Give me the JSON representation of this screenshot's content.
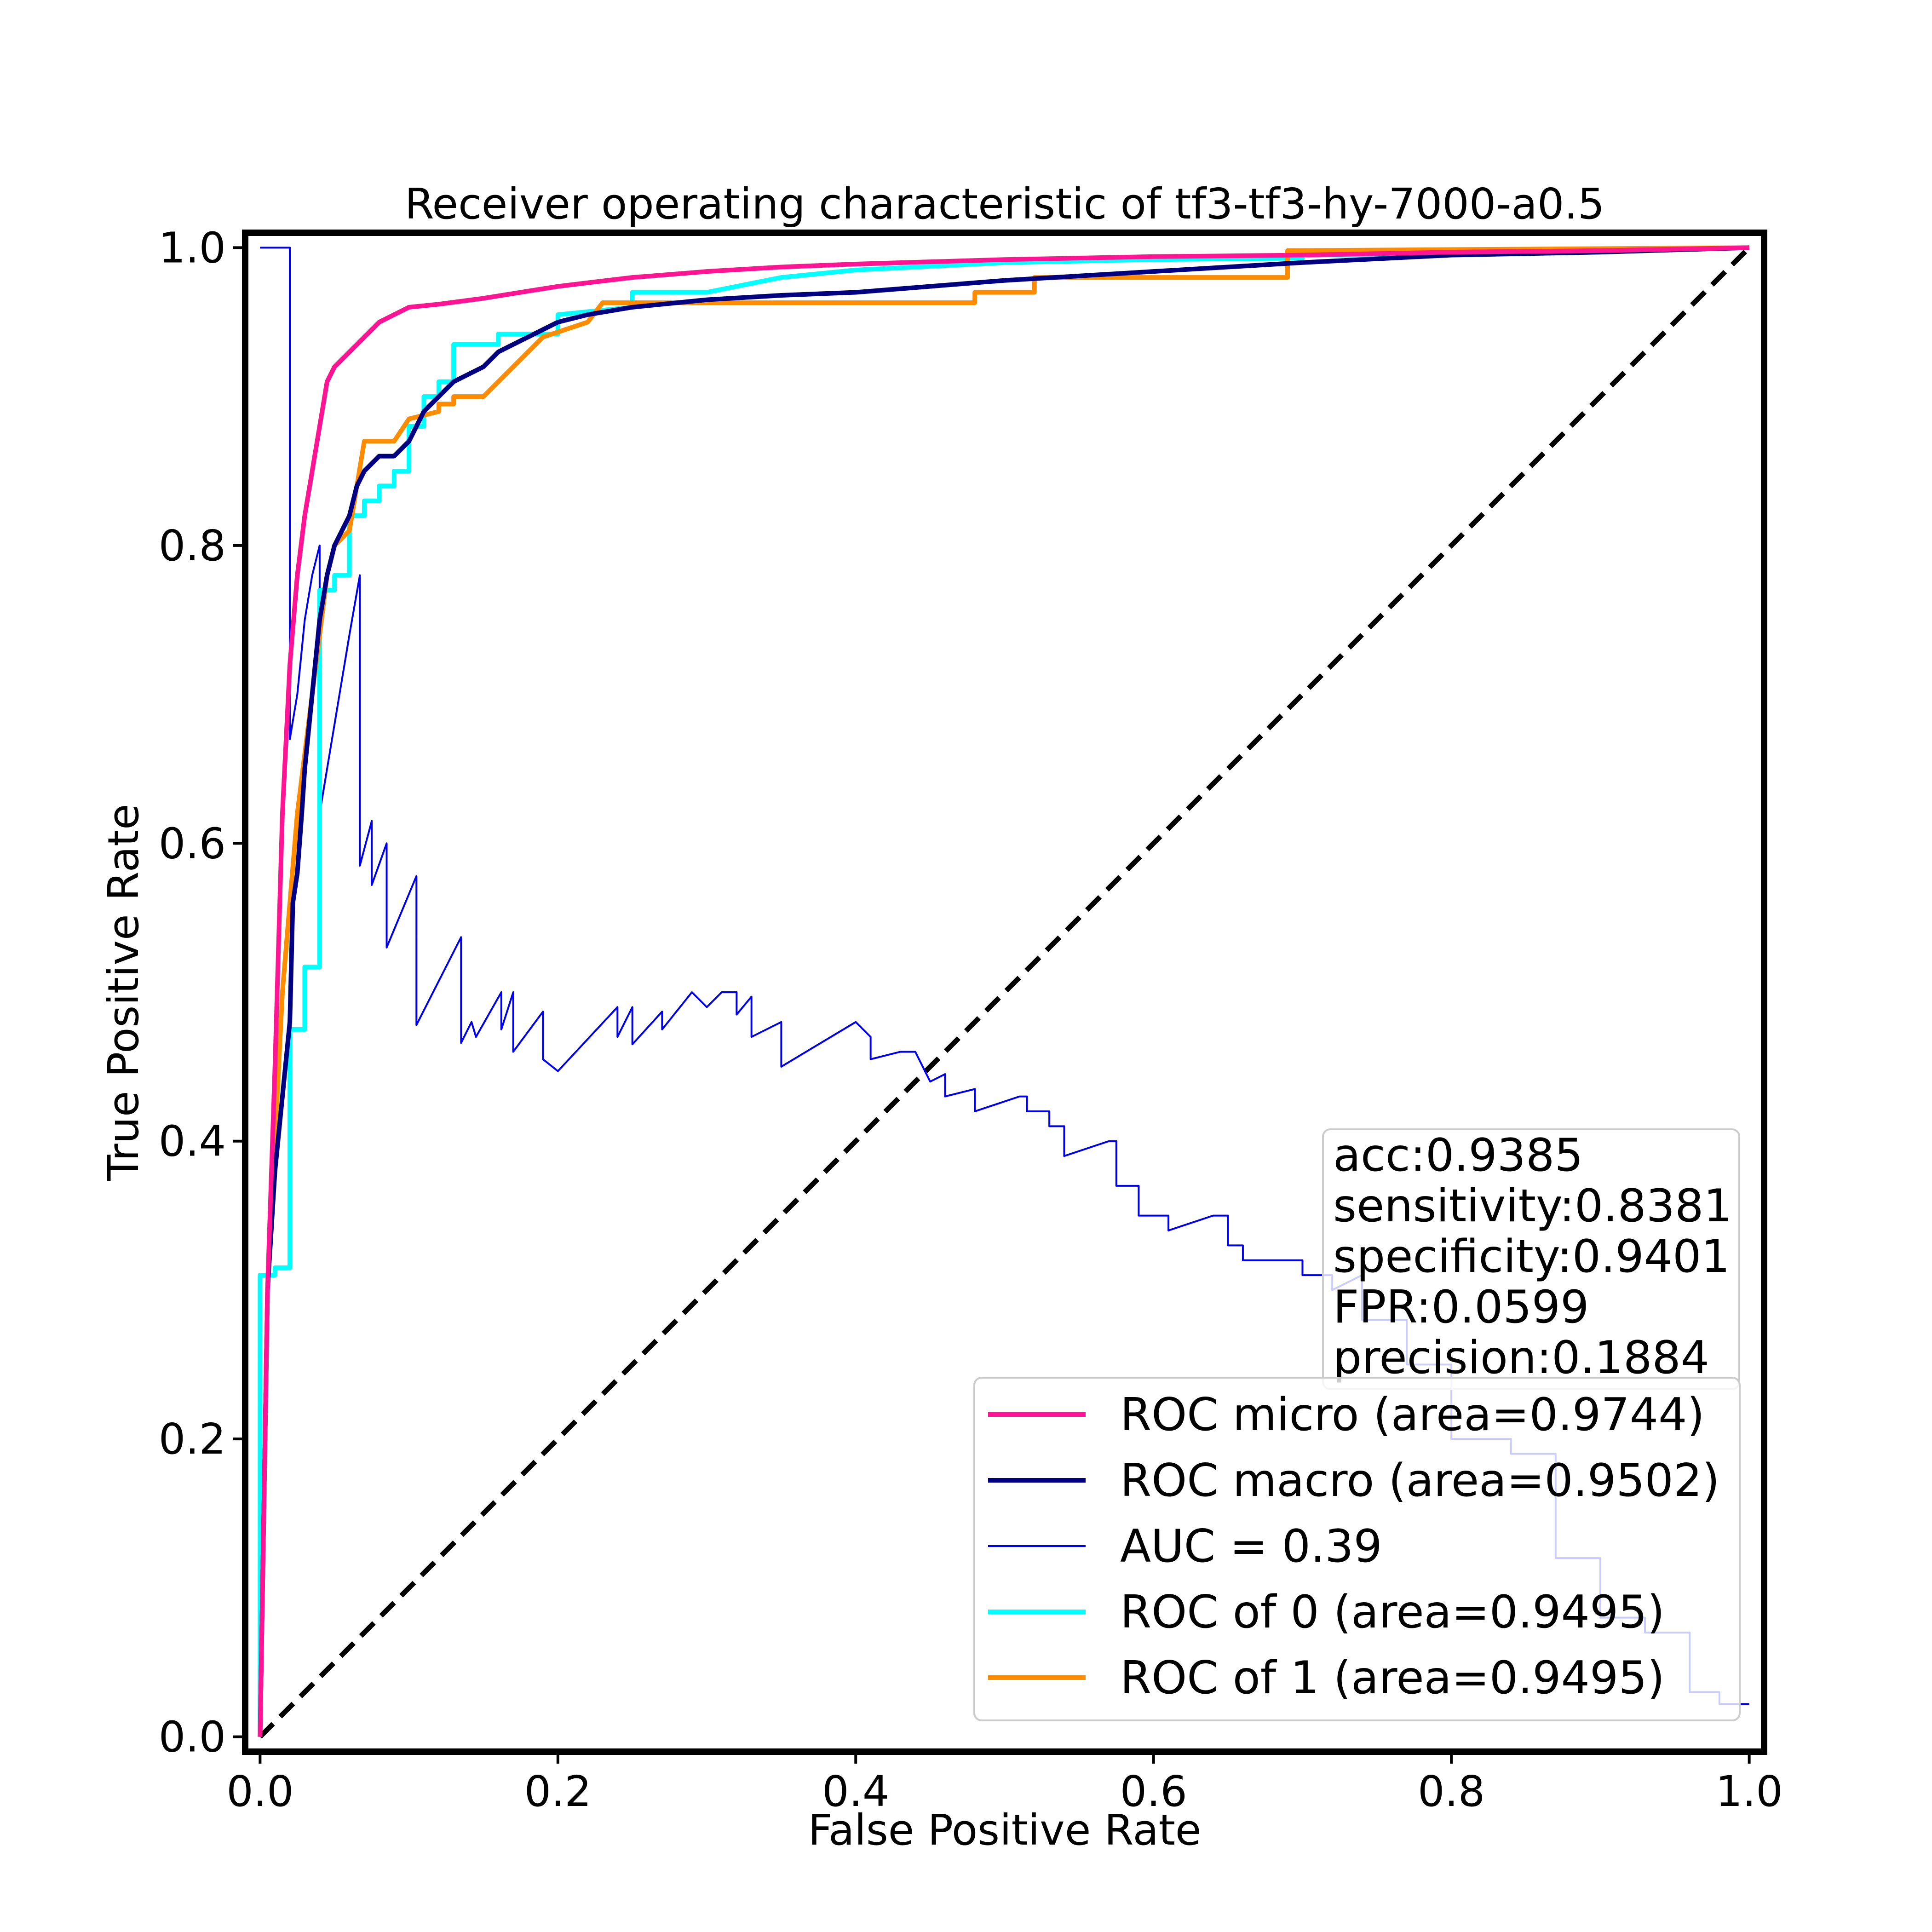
{
  "chart_data": {
    "type": "line",
    "title": "Receiver operating characteristic of tf3-tf3-hy-7000-a0.5",
    "xlabel": "False Positive Rate",
    "ylabel": "True Positive Rate",
    "xlim": [
      -0.01,
      1.01
    ],
    "ylim": [
      -0.01,
      1.01
    ],
    "x_ticks": [
      "0.0",
      "0.2",
      "0.4",
      "0.6",
      "0.8",
      "1.0"
    ],
    "y_ticks": [
      "0.0",
      "0.2",
      "0.4",
      "0.6",
      "0.8",
      "1.0"
    ],
    "grid": false,
    "legend_position": "lower-right",
    "stats": [
      "acc:0.9385",
      "sensitivity:0.8381",
      "specificity:0.9401",
      "FPR:0.0599",
      "precision:0.1884"
    ],
    "series": [
      {
        "name": "ROC micro (area=0.9744)",
        "color": "#ff1493",
        "points": [
          [
            0,
            0
          ],
          [
            0.005,
            0.3
          ],
          [
            0.01,
            0.45
          ],
          [
            0.015,
            0.62
          ],
          [
            0.02,
            0.72
          ],
          [
            0.025,
            0.78
          ],
          [
            0.03,
            0.82
          ],
          [
            0.035,
            0.85
          ],
          [
            0.04,
            0.88
          ],
          [
            0.045,
            0.91
          ],
          [
            0.05,
            0.92
          ],
          [
            0.06,
            0.93
          ],
          [
            0.07,
            0.94
          ],
          [
            0.08,
            0.95
          ],
          [
            0.09,
            0.955
          ],
          [
            0.1,
            0.96
          ],
          [
            0.12,
            0.962
          ],
          [
            0.15,
            0.966
          ],
          [
            0.2,
            0.974
          ],
          [
            0.25,
            0.98
          ],
          [
            0.3,
            0.984
          ],
          [
            0.35,
            0.987
          ],
          [
            0.4,
            0.989
          ],
          [
            0.5,
            0.992
          ],
          [
            0.6,
            0.994
          ],
          [
            0.7,
            0.995
          ],
          [
            0.8,
            0.997
          ],
          [
            0.9,
            0.998
          ],
          [
            1.0,
            1.0
          ]
        ]
      },
      {
        "name": "ROC macro (area=0.9502)",
        "color": "#000080",
        "points": [
          [
            0,
            0
          ],
          [
            0.005,
            0.3
          ],
          [
            0.01,
            0.38
          ],
          [
            0.015,
            0.43
          ],
          [
            0.02,
            0.48
          ],
          [
            0.022,
            0.56
          ],
          [
            0.025,
            0.58
          ],
          [
            0.028,
            0.62
          ],
          [
            0.03,
            0.65
          ],
          [
            0.035,
            0.7
          ],
          [
            0.04,
            0.75
          ],
          [
            0.045,
            0.78
          ],
          [
            0.05,
            0.8
          ],
          [
            0.06,
            0.82
          ],
          [
            0.065,
            0.84
          ],
          [
            0.07,
            0.85
          ],
          [
            0.08,
            0.86
          ],
          [
            0.09,
            0.86
          ],
          [
            0.1,
            0.87
          ],
          [
            0.11,
            0.89
          ],
          [
            0.12,
            0.9
          ],
          [
            0.13,
            0.91
          ],
          [
            0.14,
            0.915
          ],
          [
            0.15,
            0.92
          ],
          [
            0.16,
            0.93
          ],
          [
            0.18,
            0.94
          ],
          [
            0.2,
            0.95
          ],
          [
            0.22,
            0.955
          ],
          [
            0.25,
            0.96
          ],
          [
            0.3,
            0.965
          ],
          [
            0.35,
            0.968
          ],
          [
            0.4,
            0.97
          ],
          [
            0.5,
            0.978
          ],
          [
            0.6,
            0.984
          ],
          [
            0.7,
            0.99
          ],
          [
            0.8,
            0.995
          ],
          [
            0.9,
            0.997
          ],
          [
            1.0,
            1.0
          ]
        ]
      },
      {
        "name": "AUC = 0.39",
        "color": "#0000ee",
        "points": [
          [
            0,
            1.0
          ],
          [
            0.02,
            1.0
          ],
          [
            0.02,
            0.67
          ],
          [
            0.025,
            0.7
          ],
          [
            0.03,
            0.75
          ],
          [
            0.035,
            0.78
          ],
          [
            0.04,
            0.8
          ],
          [
            0.04,
            0.62
          ],
          [
            0.05,
            0.68
          ],
          [
            0.06,
            0.74
          ],
          [
            0.067,
            0.78
          ],
          [
            0.067,
            0.585
          ],
          [
            0.075,
            0.615
          ],
          [
            0.075,
            0.572
          ],
          [
            0.085,
            0.6
          ],
          [
            0.085,
            0.53
          ],
          [
            0.105,
            0.578
          ],
          [
            0.105,
            0.478
          ],
          [
            0.135,
            0.537
          ],
          [
            0.135,
            0.466
          ],
          [
            0.142,
            0.48
          ],
          [
            0.145,
            0.47
          ],
          [
            0.162,
            0.5
          ],
          [
            0.162,
            0.475
          ],
          [
            0.17,
            0.5
          ],
          [
            0.17,
            0.46
          ],
          [
            0.19,
            0.487
          ],
          [
            0.19,
            0.455
          ],
          [
            0.2,
            0.447
          ],
          [
            0.24,
            0.49
          ],
          [
            0.24,
            0.47
          ],
          [
            0.25,
            0.49
          ],
          [
            0.25,
            0.465
          ],
          [
            0.27,
            0.487
          ],
          [
            0.27,
            0.475
          ],
          [
            0.29,
            0.5
          ],
          [
            0.3,
            0.49
          ],
          [
            0.31,
            0.5
          ],
          [
            0.32,
            0.5
          ],
          [
            0.32,
            0.485
          ],
          [
            0.33,
            0.497
          ],
          [
            0.33,
            0.47
          ],
          [
            0.35,
            0.48
          ],
          [
            0.35,
            0.45
          ],
          [
            0.4,
            0.48
          ],
          [
            0.41,
            0.47
          ],
          [
            0.41,
            0.455
          ],
          [
            0.43,
            0.46
          ],
          [
            0.44,
            0.46
          ],
          [
            0.45,
            0.44
          ],
          [
            0.46,
            0.445
          ],
          [
            0.46,
            0.43
          ],
          [
            0.48,
            0.435
          ],
          [
            0.48,
            0.42
          ],
          [
            0.51,
            0.43
          ],
          [
            0.515,
            0.43
          ],
          [
            0.515,
            0.42
          ],
          [
            0.53,
            0.42
          ],
          [
            0.53,
            0.41
          ],
          [
            0.54,
            0.41
          ],
          [
            0.54,
            0.39
          ],
          [
            0.57,
            0.4
          ],
          [
            0.575,
            0.4
          ],
          [
            0.575,
            0.37
          ],
          [
            0.59,
            0.37
          ],
          [
            0.59,
            0.35
          ],
          [
            0.61,
            0.35
          ],
          [
            0.61,
            0.34
          ],
          [
            0.64,
            0.35
          ],
          [
            0.65,
            0.35
          ],
          [
            0.65,
            0.33
          ],
          [
            0.66,
            0.33
          ],
          [
            0.66,
            0.32
          ],
          [
            0.7,
            0.32
          ],
          [
            0.7,
            0.31
          ],
          [
            0.72,
            0.31
          ],
          [
            0.72,
            0.3
          ],
          [
            0.74,
            0.31
          ],
          [
            0.74,
            0.28
          ],
          [
            0.77,
            0.28
          ],
          [
            0.77,
            0.25
          ],
          [
            0.8,
            0.25
          ],
          [
            0.8,
            0.2
          ],
          [
            0.84,
            0.2
          ],
          [
            0.84,
            0.19
          ],
          [
            0.87,
            0.19
          ],
          [
            0.87,
            0.12
          ],
          [
            0.9,
            0.12
          ],
          [
            0.9,
            0.08
          ],
          [
            0.93,
            0.08
          ],
          [
            0.93,
            0.07
          ],
          [
            0.96,
            0.07
          ],
          [
            0.96,
            0.03
          ],
          [
            0.98,
            0.03
          ],
          [
            0.98,
            0.022
          ],
          [
            1.0,
            0.022
          ]
        ]
      },
      {
        "name": "ROC of 0 (area=0.9495)",
        "color": "#00ffff",
        "points": [
          [
            0,
            0
          ],
          [
            0,
            0.31
          ],
          [
            0.01,
            0.31
          ],
          [
            0.01,
            0.315
          ],
          [
            0.02,
            0.315
          ],
          [
            0.02,
            0.475
          ],
          [
            0.03,
            0.475
          ],
          [
            0.03,
            0.517
          ],
          [
            0.04,
            0.517
          ],
          [
            0.04,
            0.77
          ],
          [
            0.05,
            0.77
          ],
          [
            0.05,
            0.78
          ],
          [
            0.06,
            0.78
          ],
          [
            0.06,
            0.82
          ],
          [
            0.07,
            0.82
          ],
          [
            0.07,
            0.83
          ],
          [
            0.08,
            0.83
          ],
          [
            0.08,
            0.84
          ],
          [
            0.09,
            0.84
          ],
          [
            0.09,
            0.85
          ],
          [
            0.1,
            0.85
          ],
          [
            0.1,
            0.88
          ],
          [
            0.11,
            0.88
          ],
          [
            0.11,
            0.9
          ],
          [
            0.12,
            0.9
          ],
          [
            0.12,
            0.91
          ],
          [
            0.13,
            0.91
          ],
          [
            0.13,
            0.935
          ],
          [
            0.16,
            0.935
          ],
          [
            0.16,
            0.942
          ],
          [
            0.2,
            0.942
          ],
          [
            0.2,
            0.955
          ],
          [
            0.25,
            0.96
          ],
          [
            0.25,
            0.97
          ],
          [
            0.3,
            0.97
          ],
          [
            0.35,
            0.98
          ],
          [
            0.4,
            0.985
          ],
          [
            0.5,
            0.99
          ],
          [
            0.6,
            0.992
          ],
          [
            0.7,
            0.993
          ],
          [
            0.7,
            0.995
          ],
          [
            0.8,
            0.995
          ],
          [
            0.9,
            0.997
          ],
          [
            1.0,
            1.0
          ]
        ]
      },
      {
        "name": "ROC of 1 (area=0.9495)",
        "color": "#ff8c00",
        "points": [
          [
            0,
            0
          ],
          [
            0.005,
            0.3
          ],
          [
            0.01,
            0.4
          ],
          [
            0.015,
            0.5
          ],
          [
            0.02,
            0.56
          ],
          [
            0.025,
            0.62
          ],
          [
            0.03,
            0.66
          ],
          [
            0.035,
            0.7
          ],
          [
            0.04,
            0.74
          ],
          [
            0.045,
            0.78
          ],
          [
            0.05,
            0.8
          ],
          [
            0.06,
            0.81
          ],
          [
            0.07,
            0.87
          ],
          [
            0.08,
            0.87
          ],
          [
            0.09,
            0.87
          ],
          [
            0.1,
            0.885
          ],
          [
            0.12,
            0.89
          ],
          [
            0.12,
            0.895
          ],
          [
            0.13,
            0.895
          ],
          [
            0.13,
            0.9
          ],
          [
            0.15,
            0.9
          ],
          [
            0.16,
            0.91
          ],
          [
            0.17,
            0.92
          ],
          [
            0.18,
            0.93
          ],
          [
            0.19,
            0.94
          ],
          [
            0.22,
            0.95
          ],
          [
            0.23,
            0.963
          ],
          [
            0.48,
            0.963
          ],
          [
            0.48,
            0.97
          ],
          [
            0.52,
            0.97
          ],
          [
            0.52,
            0.98
          ],
          [
            0.62,
            0.98
          ],
          [
            0.62,
            0.98
          ],
          [
            0.69,
            0.98
          ],
          [
            0.69,
            0.998
          ],
          [
            1.0,
            1.0
          ]
        ]
      }
    ],
    "diagonal": {
      "name": "chance-diagonal",
      "color": "#000000",
      "points": [
        [
          0,
          0
        ],
        [
          1,
          1
        ]
      ]
    }
  }
}
